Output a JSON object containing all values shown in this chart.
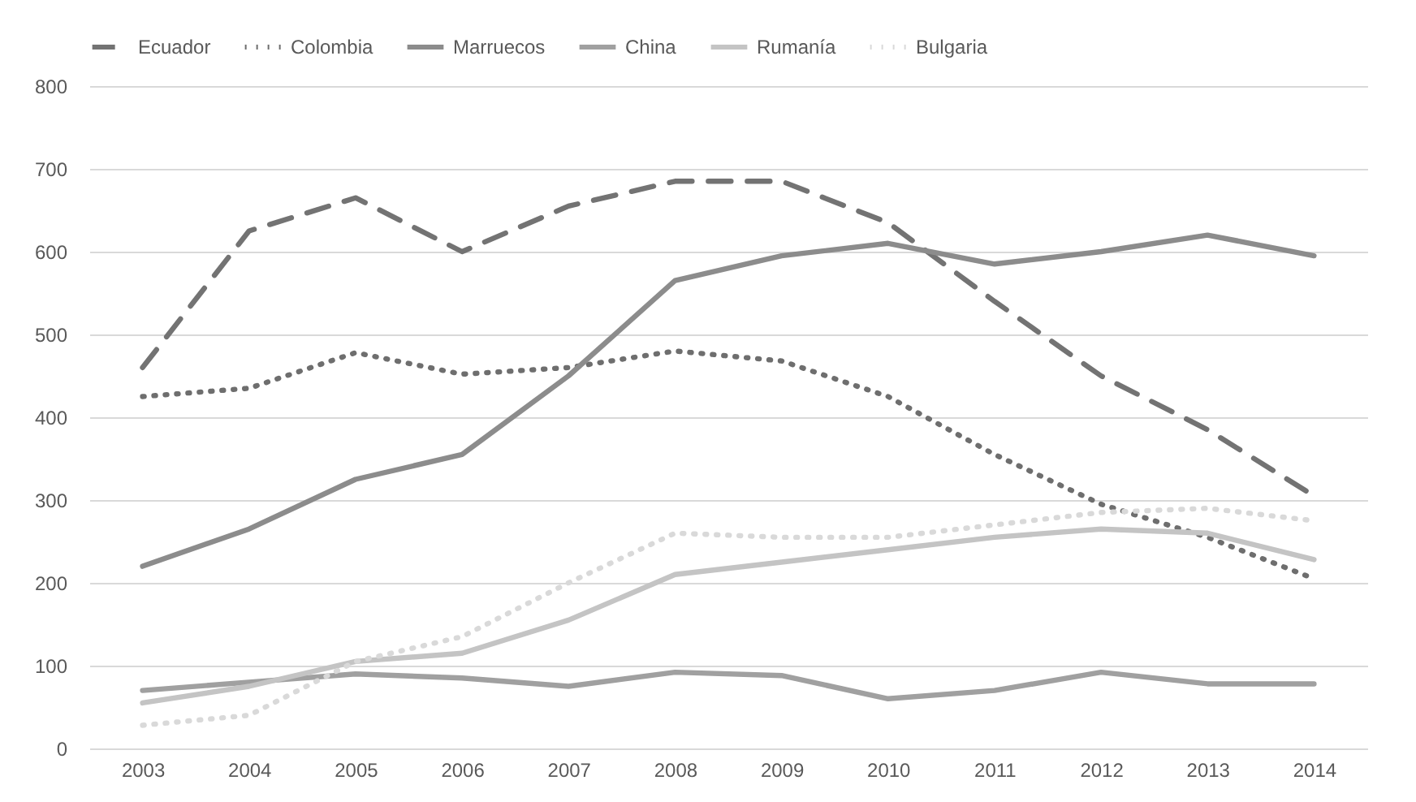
{
  "chart_data": {
    "type": "line",
    "categories": [
      "2003",
      "2004",
      "2005",
      "2006",
      "2007",
      "2008",
      "2009",
      "2010",
      "2011",
      "2012",
      "2013",
      "2014"
    ],
    "series": [
      {
        "name": "Ecuador",
        "color": "#737373",
        "line_style": "dashed",
        "values": [
          460,
          625,
          665,
          600,
          655,
          685,
          685,
          635,
          540,
          450,
          385,
          305
        ]
      },
      {
        "name": "Colombia",
        "color": "#6e6e6e",
        "line_style": "dotted",
        "values": [
          425,
          435,
          478,
          452,
          460,
          480,
          468,
          425,
          355,
          295,
          255,
          205
        ]
      },
      {
        "name": "Marruecos",
        "color": "#8c8c8c",
        "line_style": "solid",
        "values": [
          220,
          265,
          325,
          355,
          450,
          565,
          595,
          610,
          585,
          600,
          620,
          595
        ]
      },
      {
        "name": "China",
        "color": "#a0a0a0",
        "line_style": "solid",
        "values": [
          70,
          80,
          90,
          85,
          75,
          92,
          88,
          60,
          70,
          92,
          78,
          78
        ]
      },
      {
        "name": "Rumanía",
        "color": "#c4c4c4",
        "line_style": "solid",
        "values": [
          55,
          75,
          105,
          115,
          155,
          210,
          225,
          240,
          255,
          265,
          260,
          228
        ]
      },
      {
        "name": "Bulgaria",
        "color": "#d9d9d9",
        "line_style": "dotted",
        "values": [
          28,
          40,
          105,
          135,
          200,
          260,
          255,
          255,
          270,
          285,
          290,
          275
        ]
      }
    ],
    "ylim": [
      0,
      800
    ],
    "yticks": [
      0,
      100,
      200,
      300,
      400,
      500,
      600,
      700,
      800
    ],
    "grid": "y",
    "legend": "top",
    "marker": "none"
  }
}
